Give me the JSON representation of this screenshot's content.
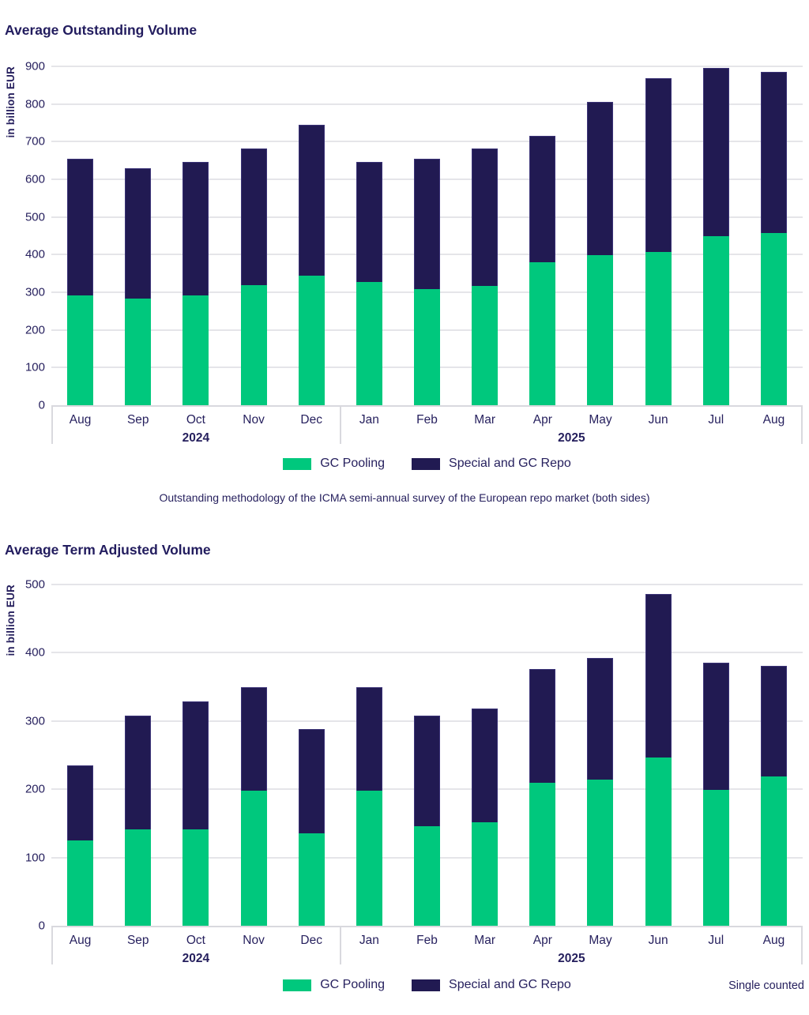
{
  "colors": {
    "gc_pooling": "#00C87D",
    "special_gc_repo": "#211A52",
    "text": "#251F5D",
    "gridline": "#E5E5E9",
    "axis_band": "#D9D9DE"
  },
  "chart_data": [
    {
      "type": "bar",
      "stacked": true,
      "title": "Average Outstanding Volume",
      "ylabel": "in billion EUR",
      "ylim": [
        0,
        900
      ],
      "ytick_step": 100,
      "grid": "horizontal",
      "legend_position": "bottom-center",
      "categories": [
        "Aug",
        "Sep",
        "Oct",
        "Nov",
        "Dec",
        "Jan",
        "Feb",
        "Mar",
        "Apr",
        "May",
        "Jun",
        "Jul",
        "Aug"
      ],
      "year_groups": [
        {
          "label": "2024",
          "span": 5
        },
        {
          "label": "2025",
          "span": 8
        }
      ],
      "series": [
        {
          "name": "GC Pooling",
          "color": "#00C87D",
          "values": [
            292,
            283,
            292,
            318,
            345,
            327,
            308,
            317,
            380,
            398,
            407,
            450,
            458
          ]
        },
        {
          "name": "Special and GC Repo",
          "color": "#211A52",
          "values": [
            362,
            346,
            354,
            363,
            399,
            319,
            347,
            364,
            336,
            407,
            461,
            445,
            428
          ]
        }
      ],
      "totals": [
        654,
        629,
        646,
        681,
        744,
        646,
        655,
        681,
        716,
        805,
        868,
        895,
        886
      ],
      "footnote": "Outstanding methodology of the ICMA semi-annual survey of the European repo market (both sides)"
    },
    {
      "type": "bar",
      "stacked": true,
      "title": "Average Term Adjusted Volume",
      "ylabel": "in billion EUR",
      "ylim": [
        0,
        500
      ],
      "ytick_step": 100,
      "grid": "horizontal",
      "legend_position": "bottom-center",
      "categories": [
        "Aug",
        "Sep",
        "Oct",
        "Nov",
        "Dec",
        "Jan",
        "Feb",
        "Mar",
        "Apr",
        "May",
        "Jun",
        "Jul",
        "Aug"
      ],
      "year_groups": [
        {
          "label": "2024",
          "span": 5
        },
        {
          "label": "2025",
          "span": 8
        }
      ],
      "series": [
        {
          "name": "GC Pooling",
          "color": "#00C87D",
          "values": [
            125,
            141,
            141,
            198,
            136,
            198,
            146,
            152,
            209,
            214,
            246,
            199,
            219
          ]
        },
        {
          "name": "Special and GC Repo",
          "color": "#211A52",
          "values": [
            110,
            167,
            188,
            152,
            152,
            152,
            162,
            166,
            167,
            178,
            240,
            187,
            162
          ]
        }
      ],
      "totals": [
        235,
        308,
        329,
        350,
        288,
        350,
        308,
        318,
        376,
        392,
        486,
        386,
        381
      ],
      "note_right": "Single counted"
    }
  ]
}
